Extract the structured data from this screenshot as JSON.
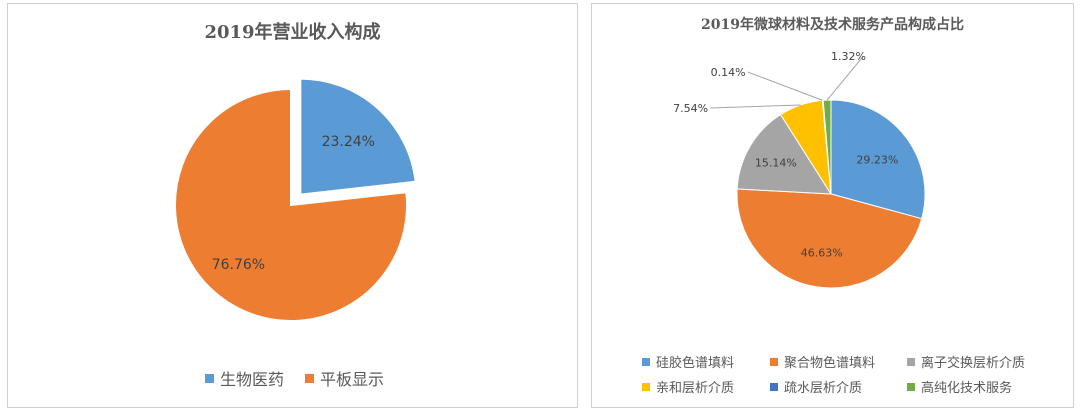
{
  "chart_data": [
    {
      "type": "pie",
      "title": "2019年营业收入构成",
      "labels": [
        "生物医药",
        "平板显示"
      ],
      "values": [
        23.24,
        76.76
      ],
      "value_labels": [
        "23.24%",
        "76.76%"
      ],
      "colors": [
        "#5b9bd5",
        "#ed7d31"
      ],
      "exploded": [
        "生物医药"
      ],
      "legend": "bottom"
    },
    {
      "type": "pie",
      "title": "2019年微球材料及技术服务产品构成占比",
      "labels": [
        "硅胶色谱填料",
        "聚合物色谱填料",
        "离子交换层析介质",
        "亲和层析介质",
        "疏水层析介质",
        "高纯化技术服务"
      ],
      "values": [
        29.23,
        46.63,
        15.14,
        7.54,
        0.14,
        1.32
      ],
      "value_labels": [
        "29.23%",
        "46.63%",
        "15.14%",
        "7.54%",
        "0.14%",
        "1.32%"
      ],
      "colors": [
        "#5b9bd5",
        "#ed7d31",
        "#a5a5a5",
        "#ffc000",
        "#4472c4",
        "#70ad47"
      ],
      "legend": "bottom"
    }
  ]
}
